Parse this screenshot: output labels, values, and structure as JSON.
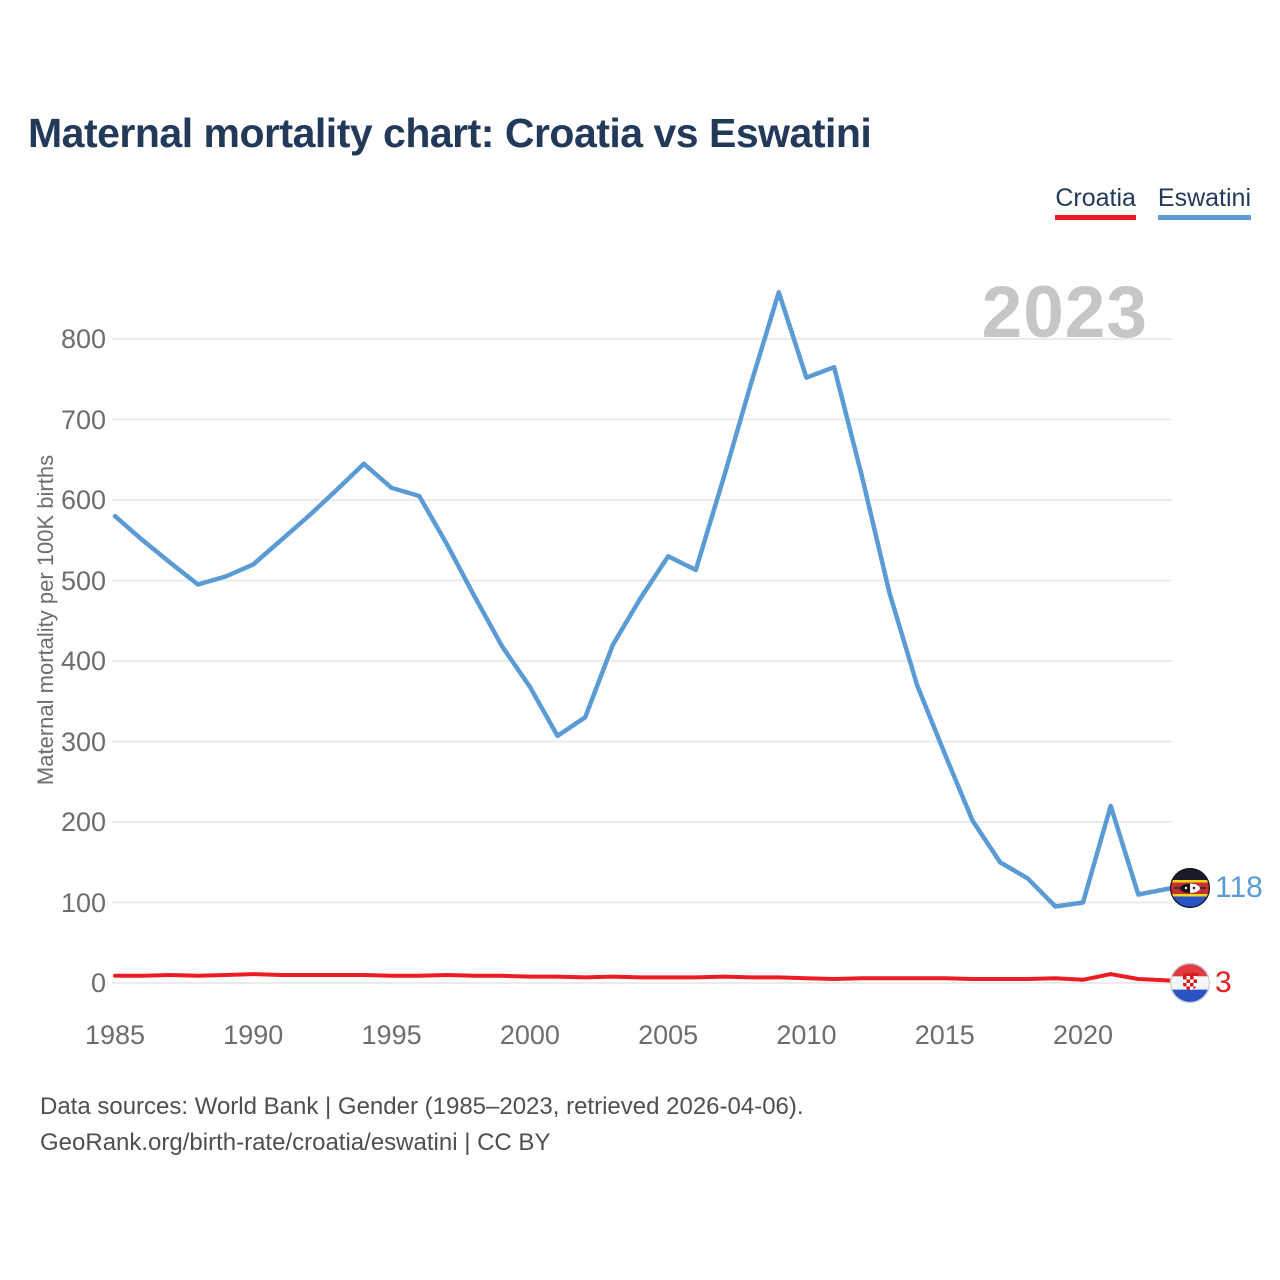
{
  "header": {
    "title": "Maternal mortality chart: Croatia vs Eswatini"
  },
  "watermark": "2023",
  "legend": [
    {
      "label": "Croatia",
      "color": "#ed1c24"
    },
    {
      "label": "Eswatini",
      "color": "#5b9bd5"
    }
  ],
  "footer": {
    "line1": "Data sources: World Bank | Gender (1985–2023, retrieved 2026-04-06).",
    "line2": "GeoRank.org/birth-rate/croatia/eswatini | CC BY"
  },
  "chart_data": {
    "type": "line",
    "title": "Maternal mortality chart: Croatia vs Eswatini",
    "xlabel": "",
    "ylabel": "Maternal mortality per 100K births",
    "xlim": [
      1985,
      2023
    ],
    "ylim": [
      0,
      870
    ],
    "x_ticks": [
      1985,
      1990,
      1995,
      2000,
      2005,
      2010,
      2015,
      2020
    ],
    "y_ticks": [
      0,
      100,
      200,
      300,
      400,
      500,
      600,
      700,
      800
    ],
    "grid": "horizontal",
    "legend_position": "top-right",
    "watermark": "2023",
    "years": [
      1985,
      1986,
      1987,
      1988,
      1989,
      1990,
      1991,
      1992,
      1993,
      1994,
      1995,
      1996,
      1997,
      1998,
      1999,
      2000,
      2001,
      2002,
      2003,
      2004,
      2005,
      2006,
      2007,
      2008,
      2009,
      2010,
      2011,
      2012,
      2013,
      2014,
      2015,
      2016,
      2017,
      2018,
      2019,
      2020,
      2021,
      2022,
      2023
    ],
    "series": [
      {
        "name": "Croatia",
        "color": "#ed1c24",
        "end_label": "3",
        "flag_icon": "croatia-flag",
        "values": [
          9,
          9,
          10,
          9,
          10,
          11,
          10,
          10,
          10,
          10,
          9,
          9,
          10,
          9,
          9,
          8,
          8,
          7,
          8,
          7,
          7,
          7,
          8,
          7,
          7,
          6,
          5,
          6,
          6,
          6,
          6,
          5,
          5,
          5,
          6,
          4,
          11,
          5,
          3
        ]
      },
      {
        "name": "Eswatini",
        "color": "#5b9bd5",
        "end_label": "118",
        "flag_icon": "eswatini-flag",
        "values": [
          580,
          550,
          522,
          495,
          505,
          520,
          550,
          580,
          612,
          645,
          615,
          605,
          545,
          480,
          418,
          368,
          307,
          330,
          420,
          478,
          530,
          513,
          627,
          745,
          858,
          752,
          765,
          630,
          485,
          370,
          285,
          202,
          150,
          130,
          95,
          100,
          220,
          110,
          118
        ]
      }
    ]
  }
}
